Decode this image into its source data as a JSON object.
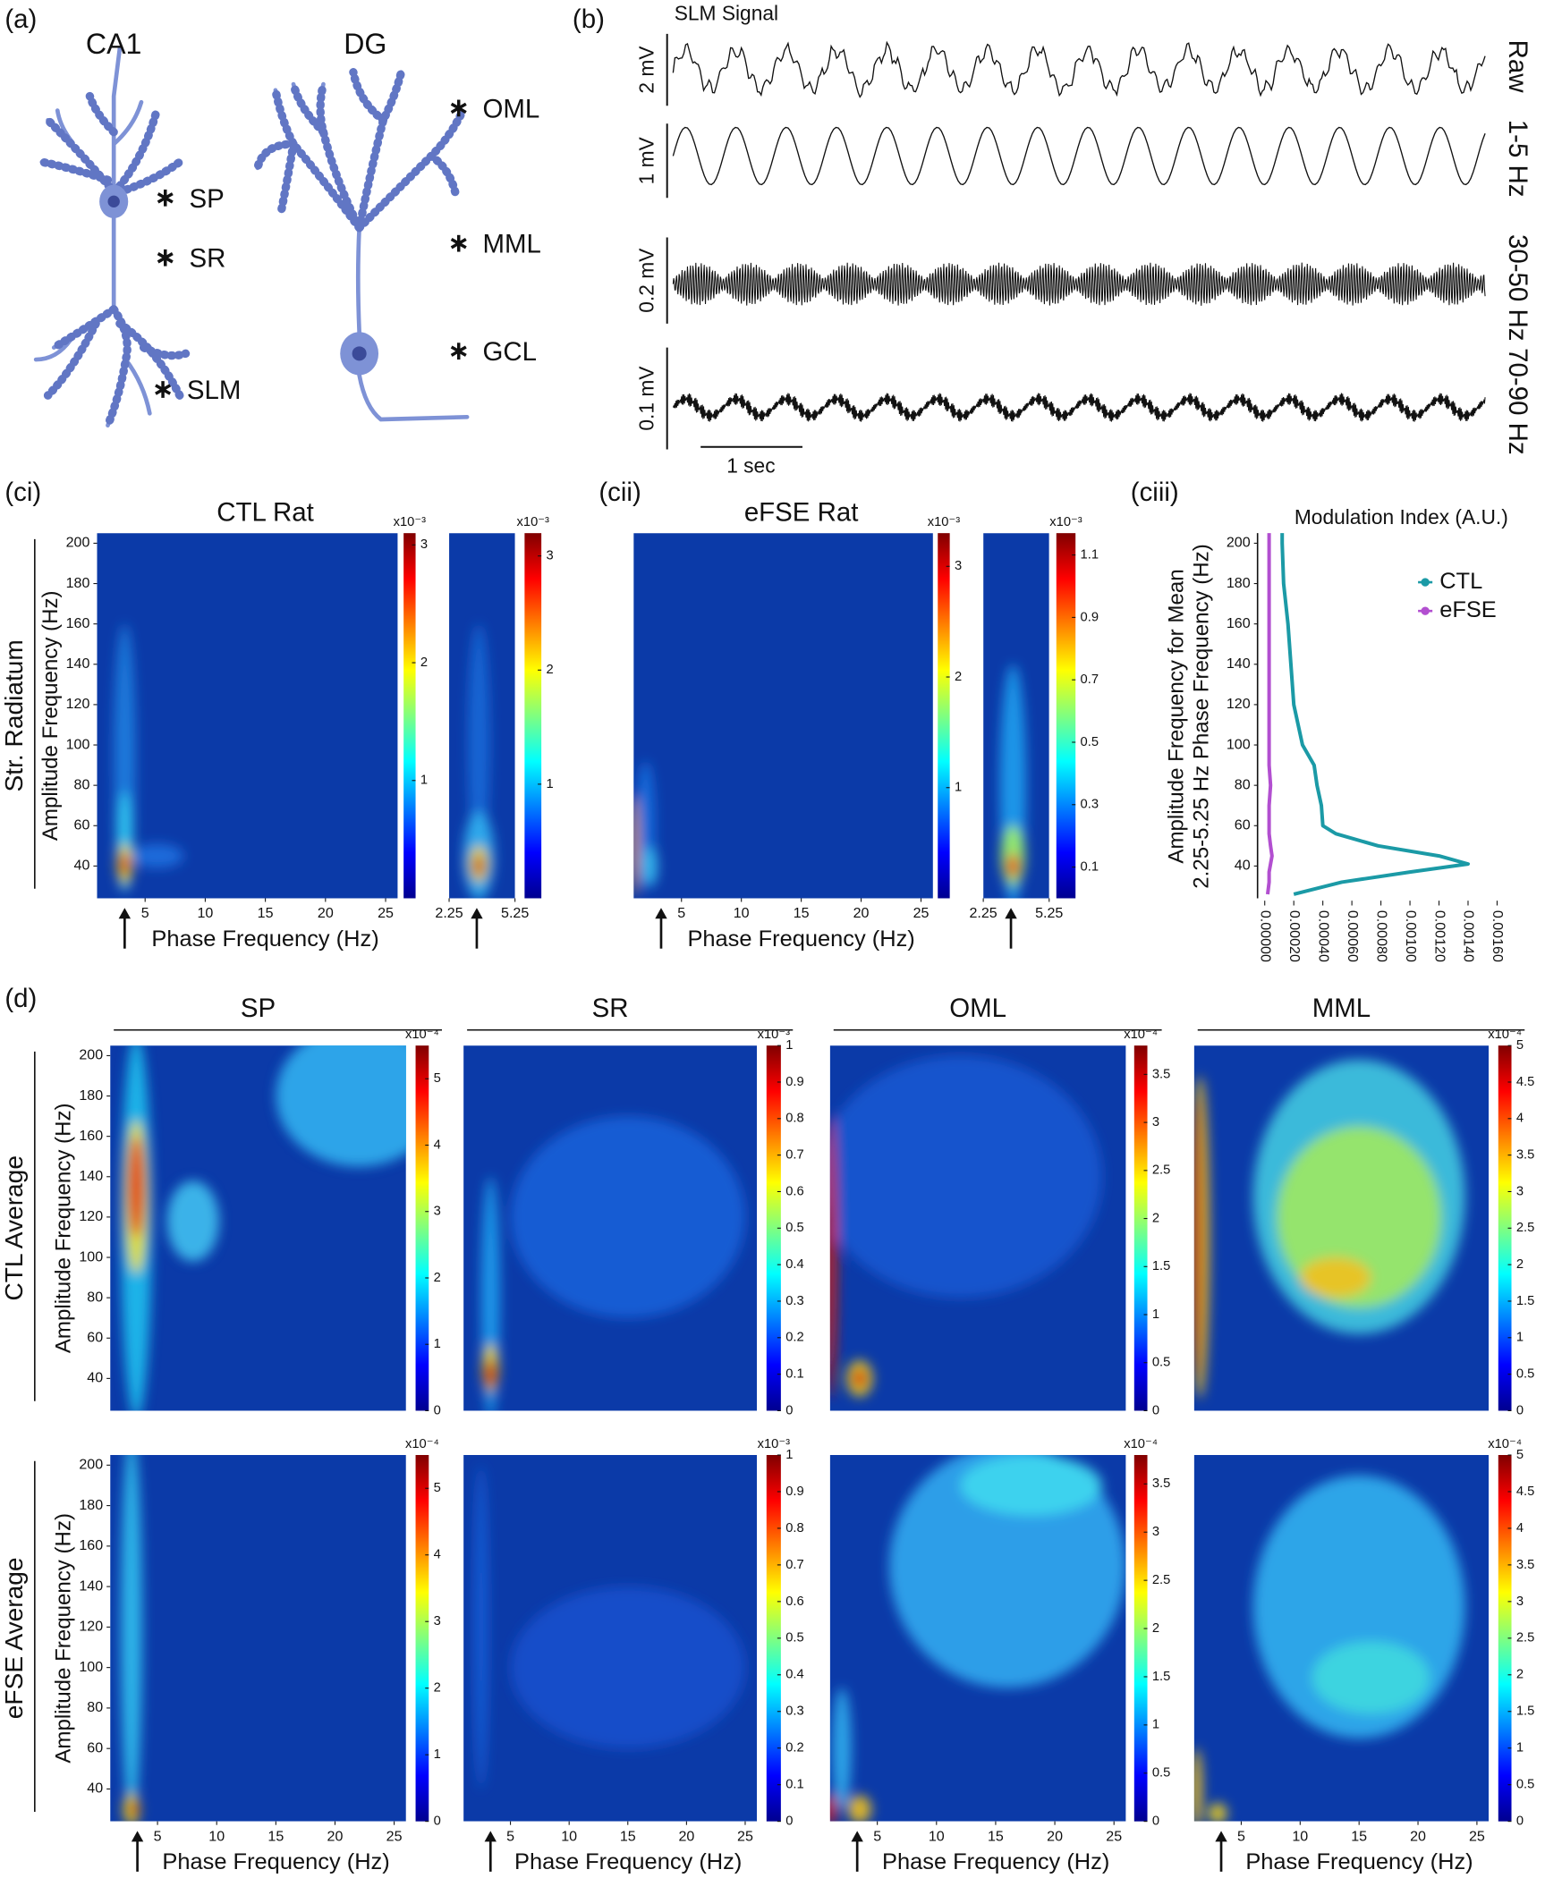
{
  "panel_labels": [
    "(a)",
    "(b)",
    "(ci)",
    "(cii)",
    "(ciii)",
    "(d)"
  ],
  "neurons": [
    {
      "title": "CA1",
      "layers": [
        "SP",
        "SR",
        "SLM"
      ]
    },
    {
      "title": "DG",
      "layers": [
        "OML",
        "MML",
        "GCL"
      ]
    }
  ],
  "chart_data": [
    {
      "type": "trace",
      "title": "SLM Signal",
      "traces": [
        {
          "name": "Raw",
          "scale_label": "2 mV"
        },
        {
          "name": "1-5 Hz",
          "scale_label": "1 mV"
        },
        {
          "name": "30-50 Hz",
          "scale_label": "0.2 mV"
        },
        {
          "name": "70-90 Hz",
          "scale_label": "0.1 mV"
        }
      ],
      "time_scale_label": "1 sec"
    },
    {
      "type": "heatmap",
      "title": "CTL Rat",
      "row_label": "Str. Radiatum",
      "ylabel": "Amplitude Frequency (Hz)",
      "xlabel": "Phase Frequency (Hz)",
      "xlim": [
        1,
        26
      ],
      "xticks": [
        5,
        10,
        15,
        20,
        25
      ],
      "ylim": [
        24,
        205
      ],
      "yticks": [
        40,
        60,
        80,
        100,
        120,
        140,
        160,
        180,
        200
      ],
      "colormap": "jet",
      "colorbar": {
        "label": "x10⁻³",
        "clim": [
          0,
          3.1
        ],
        "ticks": [
          1,
          2,
          3
        ]
      }
    },
    {
      "type": "heatmap",
      "xlim": [
        2.25,
        5.25
      ],
      "xticks": [
        2.25,
        5.25
      ],
      "ylim": [
        24,
        205
      ],
      "colormap": "jet",
      "colorbar": {
        "label": "x10⁻³",
        "clim": [
          0,
          3.2
        ],
        "ticks": [
          1,
          2,
          3
        ]
      }
    },
    {
      "type": "heatmap",
      "title": "eFSE Rat",
      "xlabel": "Phase Frequency (Hz)",
      "xlim": [
        1,
        26
      ],
      "xticks": [
        5,
        10,
        15,
        20,
        25
      ],
      "ylim": [
        24,
        205
      ],
      "colormap": "jet",
      "colorbar": {
        "label": "x10⁻³",
        "clim": [
          0,
          3.3
        ],
        "ticks": [
          1,
          2,
          3
        ]
      }
    },
    {
      "type": "heatmap",
      "xlim": [
        2.25,
        5.25
      ],
      "xticks": [
        2.25,
        5.25
      ],
      "ylim": [
        24,
        205
      ],
      "colormap": "jet",
      "colorbar": {
        "label": "x10⁻³",
        "clim": [
          0,
          1.17
        ],
        "ticks": [
          0.1,
          0.3,
          0.5,
          0.7,
          0.9,
          1.1
        ]
      }
    },
    {
      "type": "line",
      "title": "Modulation Index (A.U.)",
      "ylabel": [
        "Amplitude Frequency for Mean",
        "2.25-5.25 Hz Phase Frequency (Hz)"
      ],
      "y": [
        205,
        200,
        180,
        160,
        140,
        120,
        100,
        90,
        80,
        70,
        60,
        56,
        50,
        45,
        41,
        37,
        32,
        26
      ],
      "series": [
        {
          "name": "CTL",
          "color": "#1b9aa6",
          "values": [
            0.00012,
            0.00012,
            0.00013,
            0.00016,
            0.00018,
            0.0002,
            0.00026,
            0.00034,
            0.00036,
            0.00039,
            0.0004,
            0.00049,
            0.00078,
            0.0012,
            0.0014,
            0.001,
            0.00053,
            0.0002
          ]
        },
        {
          "name": "eFSE",
          "color": "#b24fd0",
          "values": [
            3e-05,
            3e-05,
            3e-05,
            3e-05,
            3e-05,
            3e-05,
            3e-05,
            3e-05,
            4e-05,
            3e-05,
            3e-05,
            3e-05,
            4e-05,
            5e-05,
            4e-05,
            3e-05,
            3e-05,
            2e-05
          ]
        }
      ],
      "xlim": [
        0,
        0.0016
      ],
      "xticks": [
        {
          "value": 0,
          "label": "0.00000"
        },
        {
          "value": 0.0002,
          "label": "0.00020"
        },
        {
          "value": 0.0004,
          "label": "0.00040"
        },
        {
          "value": 0.0006,
          "label": "0.00060"
        },
        {
          "value": 0.0008,
          "label": "0.00080"
        },
        {
          "value": 0.001,
          "label": "0.00100"
        },
        {
          "value": 0.0012,
          "label": "0.00120"
        },
        {
          "value": 0.0014,
          "label": "0.00140"
        },
        {
          "value": 0.0016,
          "label": "0.00160"
        }
      ],
      "ylim": [
        24,
        205
      ],
      "yticks": [
        40,
        60,
        80,
        100,
        120,
        140,
        160,
        180,
        200
      ],
      "legend": "upper right"
    },
    {
      "type": "heatmap",
      "title": "SP",
      "row_label": "CTL Average",
      "row_label_color": "#2ba3a8",
      "ylabel": "Amplitude Frequency (Hz)",
      "xlim": [
        1,
        26
      ],
      "ylim": [
        24,
        205
      ],
      "yticks": [
        40,
        60,
        80,
        100,
        120,
        140,
        160,
        180,
        200
      ],
      "colormap": "jet",
      "colorbar": {
        "label": "x10⁻⁴",
        "clim": [
          0,
          5.5
        ],
        "ticks": [
          0,
          1,
          2,
          3,
          4,
          5
        ]
      }
    },
    {
      "type": "heatmap",
      "title": "SR",
      "xlim": [
        1,
        26
      ],
      "ylim": [
        24,
        205
      ],
      "colormap": "jet",
      "colorbar": {
        "label": "x10⁻³",
        "clim": [
          0,
          1
        ],
        "ticks": [
          0,
          0.1,
          0.2,
          0.3,
          0.4,
          0.5,
          0.6,
          0.7,
          0.8,
          0.9,
          1
        ]
      }
    },
    {
      "type": "heatmap",
      "title": "OML",
      "xlim": [
        1,
        26
      ],
      "ylim": [
        24,
        205
      ],
      "colormap": "jet",
      "colorbar": {
        "label": "x10⁻⁴",
        "clim": [
          0,
          3.8
        ],
        "ticks": [
          0,
          0.5,
          1,
          1.5,
          2,
          2.5,
          3,
          3.5
        ]
      }
    },
    {
      "type": "heatmap",
      "title": "MML",
      "xlim": [
        1,
        26
      ],
      "ylim": [
        24,
        205
      ],
      "colormap": "jet",
      "colorbar": {
        "label": "x10⁻⁴",
        "clim": [
          0,
          5
        ],
        "ticks": [
          0,
          0.5,
          1,
          1.5,
          2,
          2.5,
          3,
          3.5,
          4,
          4.5,
          5
        ]
      }
    },
    {
      "type": "heatmap",
      "row_label": "eFSE Average",
      "row_label_color": "#a77bbf",
      "ylabel": "Amplitude Frequency (Hz)",
      "xlabel": "Phase Frequency (Hz)",
      "xlim": [
        1,
        26
      ],
      "xticks": [
        5,
        10,
        15,
        20,
        25
      ],
      "ylim": [
        24,
        205
      ],
      "yticks": [
        40,
        60,
        80,
        100,
        120,
        140,
        160,
        180,
        200
      ],
      "colormap": "jet",
      "colorbar": {
        "label": "x10⁻⁴",
        "clim": [
          0,
          5.5
        ],
        "ticks": [
          0,
          1,
          2,
          3,
          4,
          5
        ]
      }
    },
    {
      "type": "heatmap",
      "xlabel": "Phase Frequency (Hz)",
      "xlim": [
        1,
        26
      ],
      "xticks": [
        5,
        10,
        15,
        20,
        25
      ],
      "ylim": [
        24,
        205
      ],
      "colormap": "jet",
      "colorbar": {
        "label": "x10⁻³",
        "clim": [
          0,
          1
        ],
        "ticks": [
          0,
          0.1,
          0.2,
          0.3,
          0.4,
          0.5,
          0.6,
          0.7,
          0.8,
          0.9,
          1
        ]
      }
    },
    {
      "type": "heatmap",
      "xlabel": "Phase Frequency (Hz)",
      "xlim": [
        1,
        26
      ],
      "xticks": [
        5,
        10,
        15,
        20,
        25
      ],
      "ylim": [
        24,
        205
      ],
      "colormap": "jet",
      "colorbar": {
        "label": "x10⁻⁴",
        "clim": [
          0,
          3.8
        ],
        "ticks": [
          0,
          0.5,
          1,
          1.5,
          2,
          2.5,
          3,
          3.5
        ]
      }
    },
    {
      "type": "heatmap",
      "xlabel": "Phase Frequency (Hz)",
      "xlim": [
        1,
        26
      ],
      "xticks": [
        5,
        10,
        15,
        20,
        25
      ],
      "ylim": [
        24,
        205
      ],
      "colormap": "jet",
      "colorbar": {
        "label": "x10⁻⁴",
        "clim": [
          0,
          5
        ],
        "ticks": [
          0,
          0.5,
          1,
          1.5,
          2,
          2.5,
          3,
          3.5,
          4,
          4.5,
          5
        ]
      }
    }
  ]
}
